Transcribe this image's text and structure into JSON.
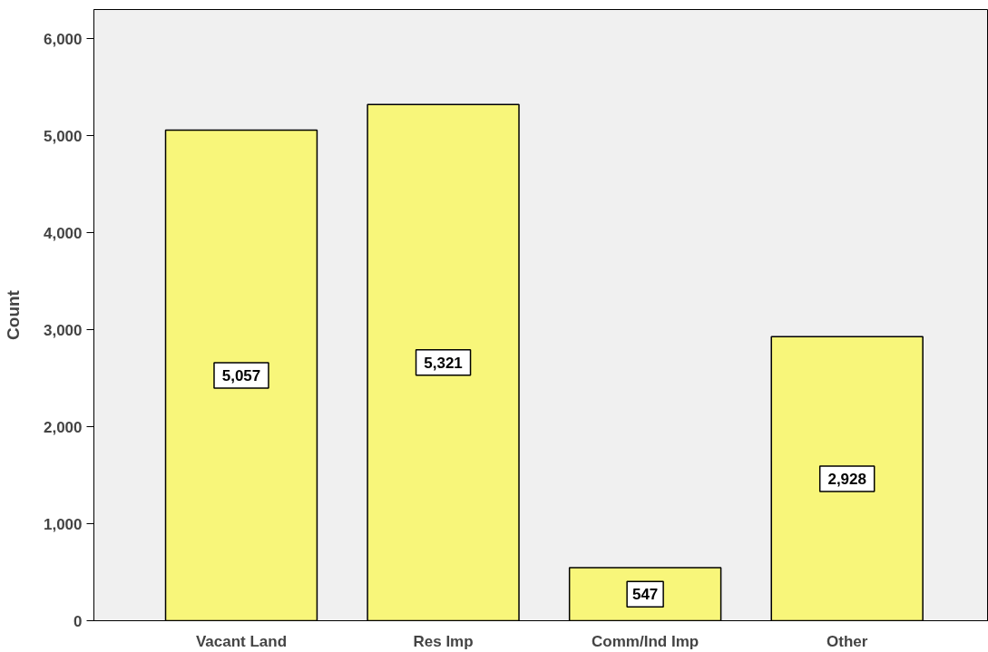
{
  "chart_data": {
    "type": "bar",
    "ylabel": "Count",
    "categories": [
      "Vacant Land",
      "Res Imp",
      "Comm/Ind Imp",
      "Other"
    ],
    "values": [
      5057,
      5321,
      547,
      2928
    ],
    "color": "#f8f67a",
    "data_labels": true,
    "value_labels": [
      "5,057",
      "5,321",
      "547",
      "2,928"
    ],
    "ylim": [
      0,
      6300
    ],
    "yticks": [
      {
        "value": 0,
        "label": "0"
      },
      {
        "value": 1000,
        "label": "1,000"
      },
      {
        "value": 2000,
        "label": "2,000"
      },
      {
        "value": 3000,
        "label": "3,000"
      },
      {
        "value": 4000,
        "label": "4,000"
      },
      {
        "value": 5000,
        "label": "5,000"
      },
      {
        "value": 6000,
        "label": "6,000"
      }
    ],
    "grid": false
  }
}
